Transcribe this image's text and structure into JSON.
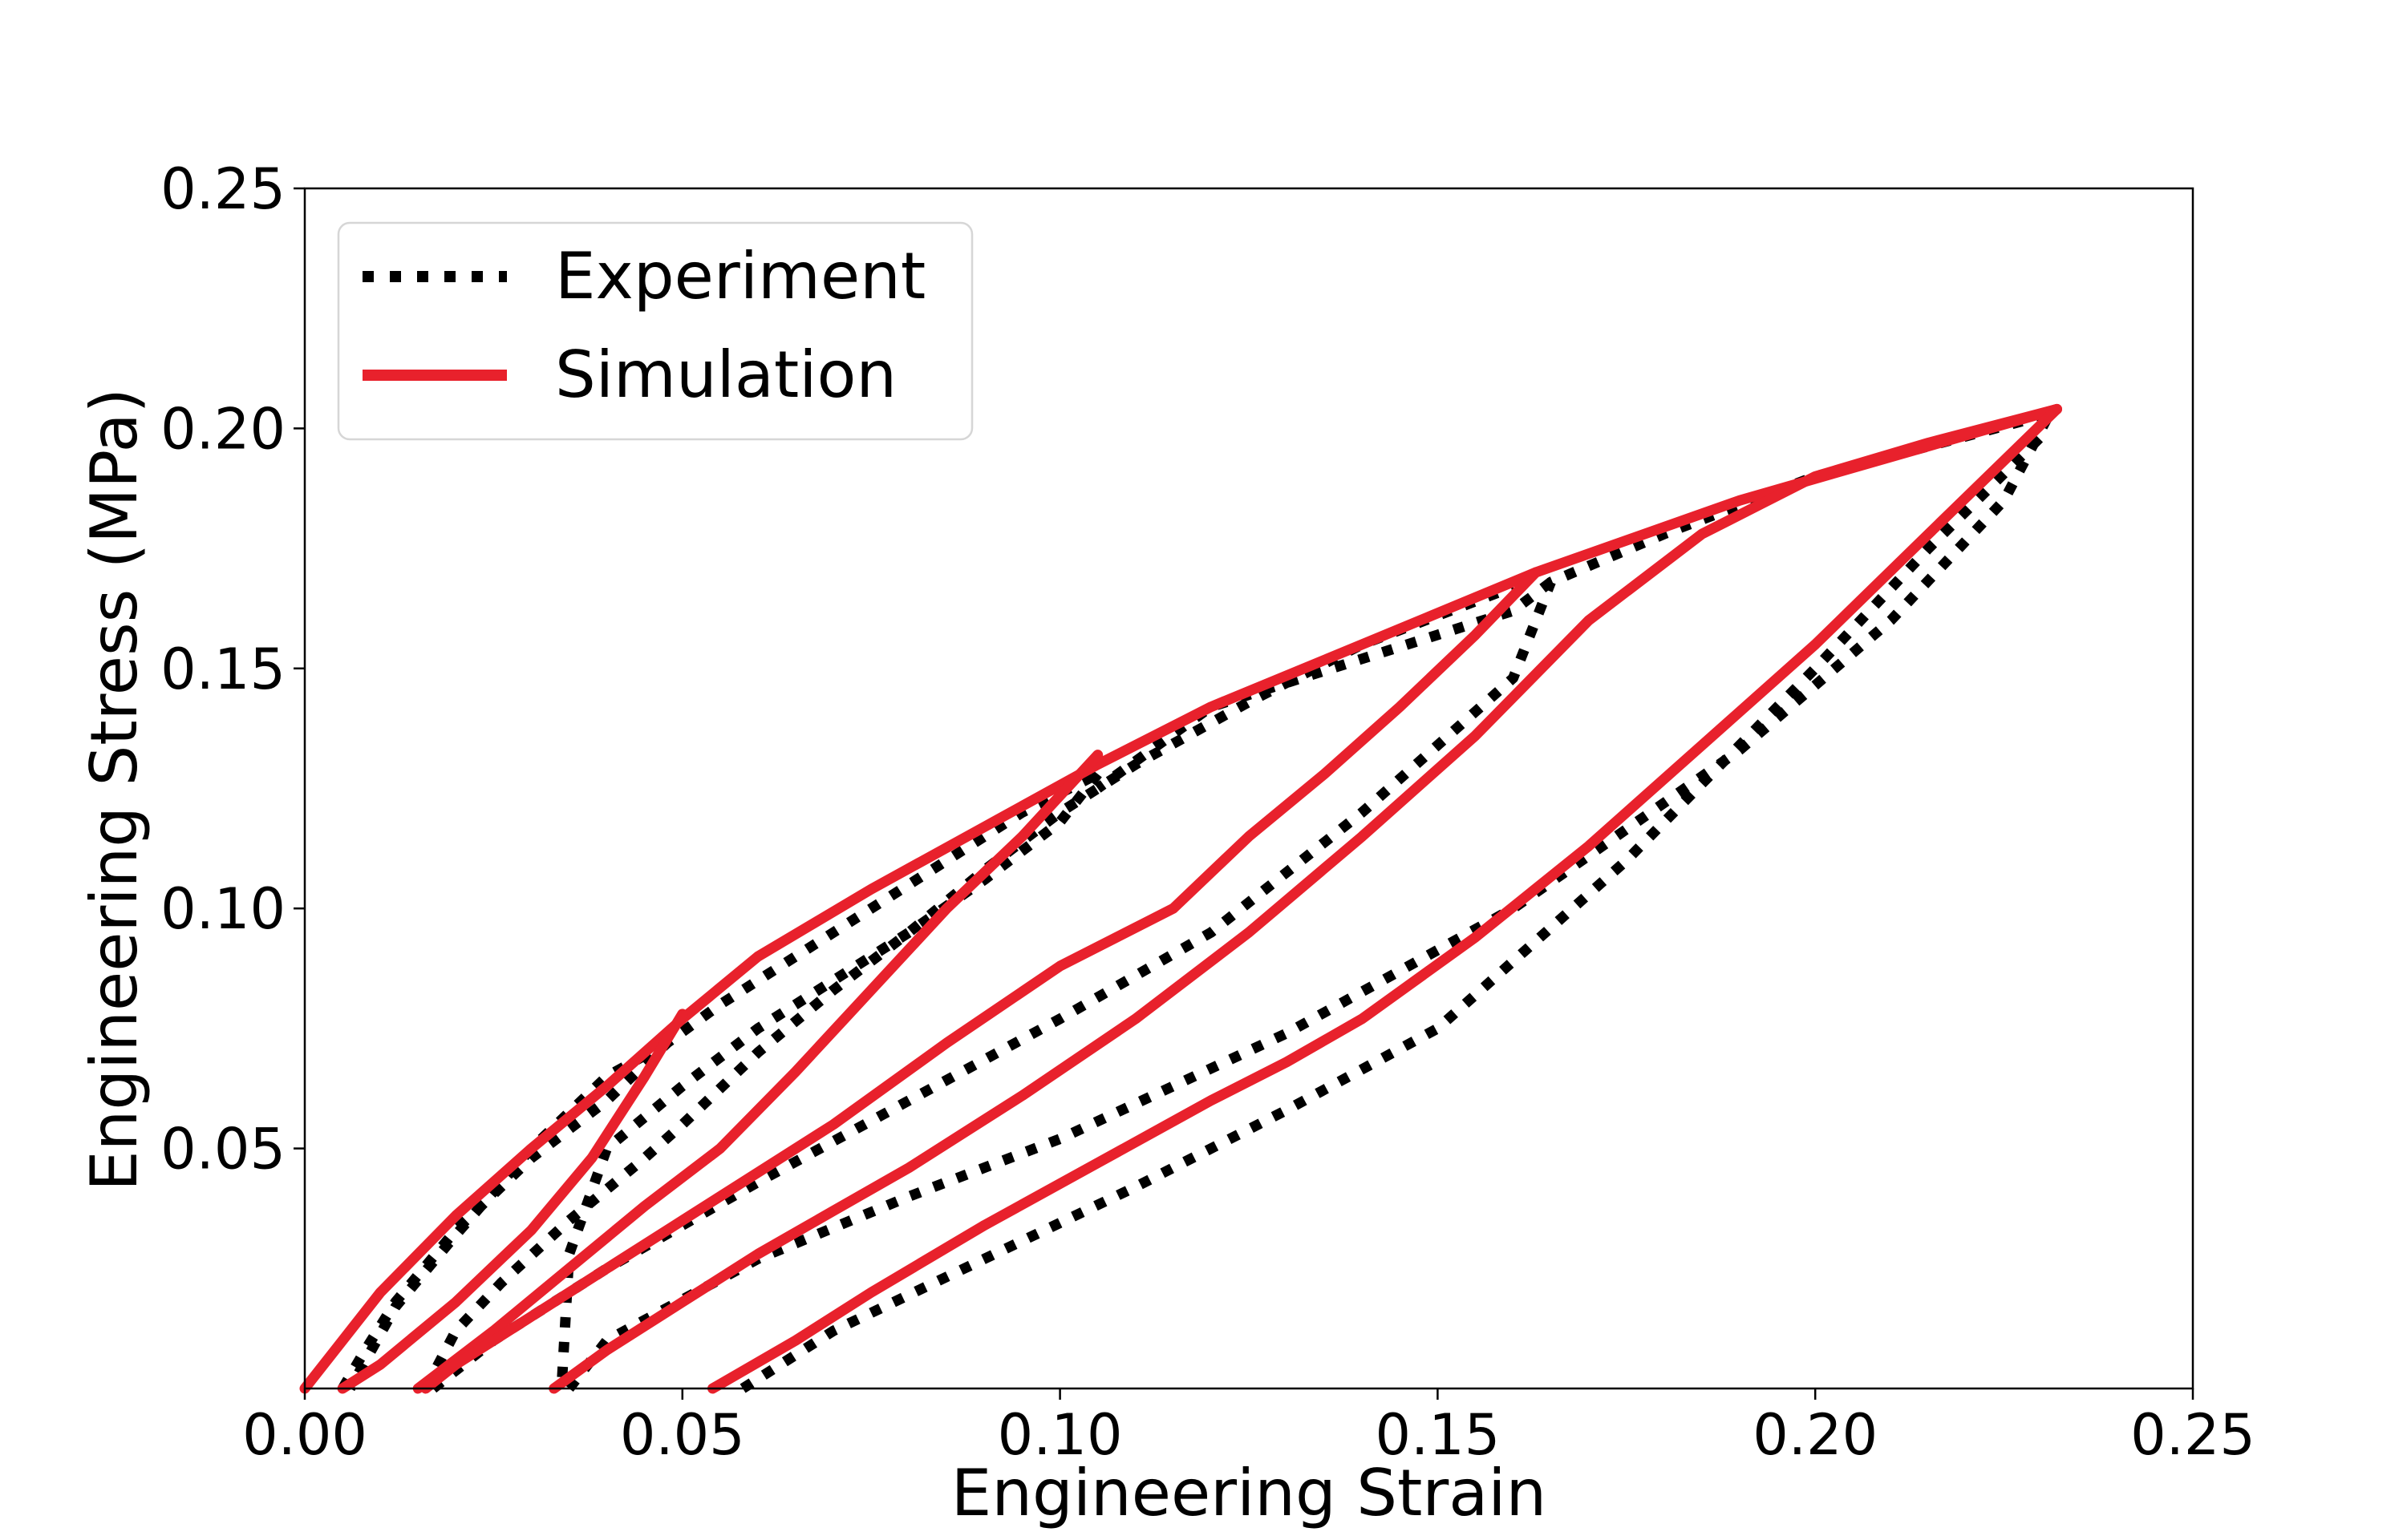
{
  "chart_data": {
    "type": "line",
    "title": "",
    "xlabel": "Engineering Strain",
    "ylabel": "Engineering Stress (MPa)",
    "xlim": [
      0.0,
      0.25
    ],
    "ylim": [
      0.0,
      0.25
    ],
    "x_ticks": [
      "0.00",
      "0.05",
      "0.10",
      "0.15",
      "0.20",
      "0.25"
    ],
    "y_ticks": [
      "0.05",
      "0.10",
      "0.15",
      "0.20",
      "0.25"
    ],
    "grid": false,
    "legend_position": "top-left",
    "colors": {
      "experiment": "#000000",
      "simulation": "#e8212c"
    },
    "series": [
      {
        "name": "Experiment",
        "style": "dotted",
        "segments": [
          [
            [
              0.005,
              0.0
            ],
            [
              0.008,
              0.008
            ],
            [
              0.012,
              0.018
            ],
            [
              0.02,
              0.033
            ],
            [
              0.03,
              0.048
            ],
            [
              0.04,
              0.06
            ],
            [
              0.048,
              0.072
            ],
            [
              0.055,
              0.08
            ],
            [
              0.065,
              0.09
            ],
            [
              0.08,
              0.105
            ],
            [
              0.095,
              0.12
            ],
            [
              0.105,
              0.128
            ]
          ],
          [
            [
              0.048,
              0.072
            ],
            [
              0.04,
              0.065
            ],
            [
              0.03,
              0.05
            ],
            [
              0.02,
              0.032
            ],
            [
              0.012,
              0.017
            ],
            [
              0.006,
              0.0
            ]
          ],
          [
            [
              0.016,
              0.0
            ],
            [
              0.02,
              0.012
            ],
            [
              0.026,
              0.022
            ],
            [
              0.035,
              0.035
            ],
            [
              0.045,
              0.048
            ],
            [
              0.05,
              0.055
            ],
            [
              0.06,
              0.07
            ],
            [
              0.07,
              0.083
            ],
            [
              0.08,
              0.095
            ],
            [
              0.09,
              0.108
            ],
            [
              0.1,
              0.12
            ],
            [
              0.11,
              0.13
            ],
            [
              0.125,
              0.143
            ],
            [
              0.14,
              0.155
            ],
            [
              0.16,
              0.167
            ]
          ],
          [
            [
              0.105,
              0.128
            ],
            [
              0.1,
              0.118
            ],
            [
              0.09,
              0.106
            ],
            [
              0.08,
              0.095
            ],
            [
              0.07,
              0.085
            ],
            [
              0.06,
              0.075
            ],
            [
              0.05,
              0.063
            ],
            [
              0.04,
              0.05
            ],
            [
              0.035,
              0.028
            ],
            [
              0.034,
              0.0
            ]
          ],
          [
            [
              0.017,
              0.0
            ],
            [
              0.025,
              0.01
            ],
            [
              0.04,
              0.025
            ],
            [
              0.06,
              0.043
            ],
            [
              0.08,
              0.06
            ],
            [
              0.1,
              0.077
            ],
            [
              0.12,
              0.095
            ],
            [
              0.14,
              0.12
            ],
            [
              0.16,
              0.148
            ],
            [
              0.165,
              0.168
            ],
            [
              0.18,
              0.178
            ],
            [
              0.2,
              0.19
            ],
            [
              0.231,
              0.203
            ]
          ],
          [
            [
              0.165,
              0.168
            ],
            [
              0.16,
              0.162
            ],
            [
              0.15,
              0.157
            ],
            [
              0.14,
              0.152
            ],
            [
              0.12,
              0.142
            ],
            [
              0.105,
              0.125
            ]
          ],
          [
            [
              0.035,
              0.0
            ],
            [
              0.04,
              0.01
            ],
            [
              0.06,
              0.027
            ],
            [
              0.08,
              0.04
            ],
            [
              0.1,
              0.052
            ],
            [
              0.13,
              0.074
            ],
            [
              0.16,
              0.1
            ],
            [
              0.19,
              0.133
            ],
            [
              0.21,
              0.16
            ],
            [
              0.225,
              0.185
            ],
            [
              0.231,
              0.203
            ]
          ],
          [
            [
              0.058,
              0.0
            ],
            [
              0.07,
              0.012
            ],
            [
              0.09,
              0.027
            ],
            [
              0.11,
              0.042
            ],
            [
              0.13,
              0.058
            ],
            [
              0.15,
              0.075
            ],
            [
              0.175,
              0.11
            ],
            [
              0.2,
              0.15
            ],
            [
              0.215,
              0.175
            ],
            [
              0.231,
              0.2
            ]
          ]
        ]
      },
      {
        "name": "Simulation",
        "style": "solid",
        "segments": [
          [
            [
              0.0,
              0.0
            ],
            [
              0.005,
              0.01
            ],
            [
              0.01,
              0.02
            ],
            [
              0.02,
              0.036
            ],
            [
              0.03,
              0.05
            ],
            [
              0.04,
              0.063
            ],
            [
              0.05,
              0.077
            ],
            [
              0.06,
              0.09
            ],
            [
              0.075,
              0.104
            ],
            [
              0.09,
              0.117
            ],
            [
              0.105,
              0.13
            ],
            [
              0.12,
              0.142
            ],
            [
              0.14,
              0.155
            ],
            [
              0.163,
              0.17
            ],
            [
              0.19,
              0.185
            ],
            [
              0.232,
              0.204
            ]
          ],
          [
            [
              0.005,
              0.0
            ],
            [
              0.01,
              0.005
            ],
            [
              0.02,
              0.018
            ],
            [
              0.03,
              0.033
            ],
            [
              0.038,
              0.048
            ],
            [
              0.045,
              0.065
            ],
            [
              0.05,
              0.078
            ]
          ],
          [
            [
              0.015,
              0.0
            ],
            [
              0.025,
              0.012
            ],
            [
              0.035,
              0.025
            ],
            [
              0.045,
              0.038
            ],
            [
              0.055,
              0.05
            ],
            [
              0.065,
              0.066
            ],
            [
              0.075,
              0.083
            ],
            [
              0.085,
              0.1
            ],
            [
              0.095,
              0.115
            ],
            [
              0.105,
              0.132
            ]
          ],
          [
            [
              0.016,
              0.0
            ],
            [
              0.02,
              0.005
            ],
            [
              0.03,
              0.015
            ],
            [
              0.04,
              0.025
            ],
            [
              0.05,
              0.035
            ],
            [
              0.06,
              0.045
            ],
            [
              0.07,
              0.055
            ],
            [
              0.085,
              0.072
            ],
            [
              0.1,
              0.088
            ],
            [
              0.115,
              0.1
            ],
            [
              0.125,
              0.115
            ],
            [
              0.135,
              0.128
            ],
            [
              0.145,
              0.142
            ],
            [
              0.155,
              0.157
            ],
            [
              0.163,
              0.17
            ]
          ],
          [
            [
              0.033,
              0.0
            ],
            [
              0.04,
              0.008
            ],
            [
              0.05,
              0.018
            ],
            [
              0.06,
              0.028
            ],
            [
              0.07,
              0.037
            ],
            [
              0.08,
              0.046
            ],
            [
              0.095,
              0.061
            ],
            [
              0.11,
              0.077
            ],
            [
              0.125,
              0.095
            ],
            [
              0.14,
              0.115
            ],
            [
              0.155,
              0.136
            ],
            [
              0.17,
              0.16
            ],
            [
              0.185,
              0.178
            ],
            [
              0.2,
              0.19
            ],
            [
              0.215,
              0.197
            ],
            [
              0.232,
              0.204
            ]
          ],
          [
            [
              0.054,
              0.0
            ],
            [
              0.065,
              0.01
            ],
            [
              0.075,
              0.02
            ],
            [
              0.09,
              0.034
            ],
            [
              0.105,
              0.047
            ],
            [
              0.12,
              0.06
            ],
            [
              0.13,
              0.068
            ],
            [
              0.14,
              0.077
            ],
            [
              0.155,
              0.094
            ],
            [
              0.17,
              0.113
            ],
            [
              0.185,
              0.134
            ],
            [
              0.2,
              0.155
            ],
            [
              0.215,
              0.178
            ],
            [
              0.232,
              0.204
            ]
          ]
        ]
      }
    ]
  }
}
